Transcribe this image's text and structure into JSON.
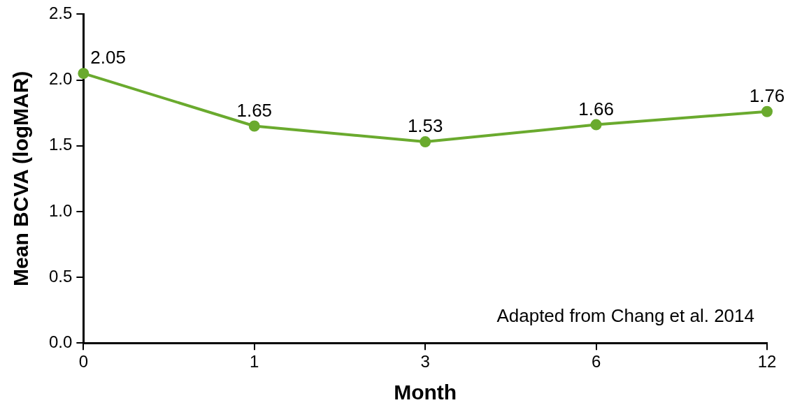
{
  "chart_data": {
    "type": "line",
    "categories": [
      "0",
      "1",
      "3",
      "6",
      "12"
    ],
    "series": [
      {
        "color": "#6aaa2e",
        "values": [
          2.05,
          1.65,
          1.53,
          1.66,
          1.76
        ]
      }
    ],
    "ylim": [
      0,
      2.5
    ],
    "yticks": [
      {
        "value": 0,
        "label": "0.0"
      },
      {
        "value": 0.5,
        "label": "0.5"
      },
      {
        "value": 1,
        "label": "1.0"
      },
      {
        "value": 1.5,
        "label": "1.5"
      },
      {
        "value": 2,
        "label": "2.0"
      },
      {
        "value": 2.5,
        "label": "2.5"
      }
    ],
    "xlabel": "Month",
    "ylabel": "Mean BCVA (logMAR)",
    "data_labels": true,
    "marker": "circle",
    "grid": false,
    "legend": false,
    "annotations": [
      "Adapted from Chang et al. 2014"
    ]
  }
}
